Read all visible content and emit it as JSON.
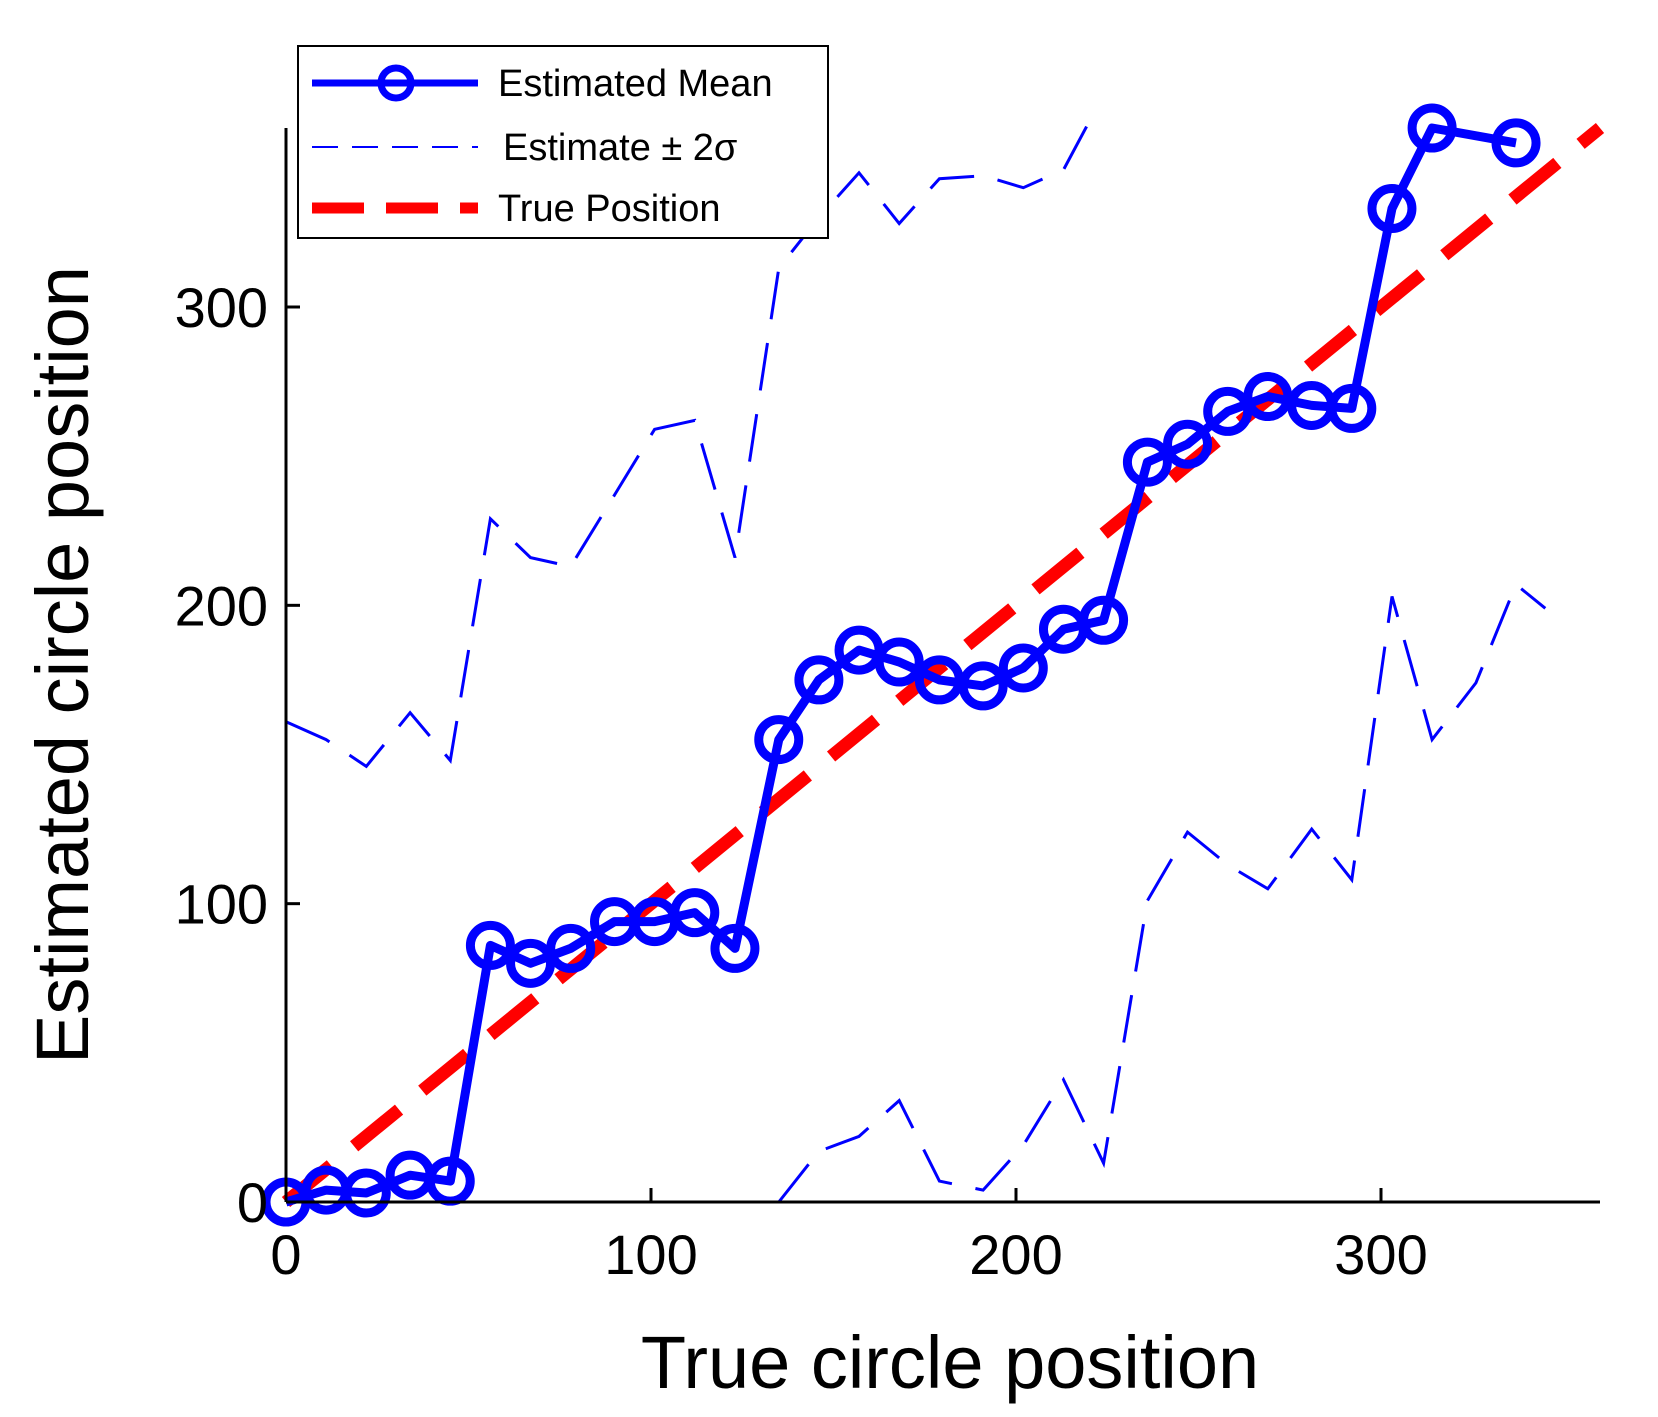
{
  "chart_data": {
    "type": "line",
    "xlabel": "True circle position",
    "ylabel": "Estimated circle position",
    "xlim": [
      0,
      360
    ],
    "ylim": [
      0,
      360
    ],
    "xticks": [
      "0",
      "100",
      "200",
      "300"
    ],
    "yticks": [
      "0",
      "100",
      "200",
      "300"
    ],
    "xtick_values": [
      0,
      100,
      200,
      300
    ],
    "ytick_values": [
      0,
      100,
      200,
      300
    ],
    "grid": false,
    "legend_position": "top-left",
    "colors": {
      "mean": "#0000ff",
      "band": "#0000ff",
      "truth": "#ff0000",
      "axis": "#000000"
    },
    "series": [
      {
        "name": "Estimated Mean",
        "style": "solid-line-with-circles",
        "x": [
          0,
          11,
          22,
          34,
          45,
          56,
          67,
          78,
          90,
          101,
          112,
          123,
          135,
          146,
          157,
          168,
          179,
          191,
          202,
          213,
          224,
          236,
          247,
          258,
          269,
          281,
          292,
          303,
          314,
          337
        ],
        "y": [
          0,
          4,
          3,
          9,
          7,
          86,
          80,
          85,
          94,
          94,
          97,
          85,
          155,
          175,
          185,
          181,
          175,
          173,
          179,
          192,
          195,
          248,
          254,
          265,
          270,
          267,
          266,
          333,
          360,
          355
        ]
      },
      {
        "name": "Estimate ± 2σ",
        "style": "thin-dashed",
        "segments": [
          {
            "x": [
              0,
              11,
              22,
              34,
              45,
              56,
              67,
              78,
              90,
              101,
              112,
              123,
              135,
              146,
              157,
              168,
              179,
              191,
              202,
              213,
              220
            ],
            "y": [
              161,
              155,
              146,
              164,
              148,
              229,
              216,
              213,
              237,
              259,
              262,
              216,
              313,
              330,
              345,
              328,
              343,
              344,
              340,
              346,
              362
            ]
          },
          {
            "x": [
              135,
              146,
              157,
              168,
              179,
              191,
              202,
              213,
              224,
              236,
              247,
              258,
              269,
              281,
              292,
              303,
              314,
              326,
              337,
              345
            ],
            "y": [
              0,
              17,
              22,
              34,
              7,
              4,
              19,
              41,
              13,
              101,
              124,
              113,
              105,
              125,
              108,
              203,
              155,
              174,
              207,
              199
            ]
          }
        ]
      },
      {
        "name": "True Position",
        "style": "thick-dashed",
        "x": [
          0,
          360
        ],
        "y": [
          0,
          360
        ]
      }
    ]
  }
}
